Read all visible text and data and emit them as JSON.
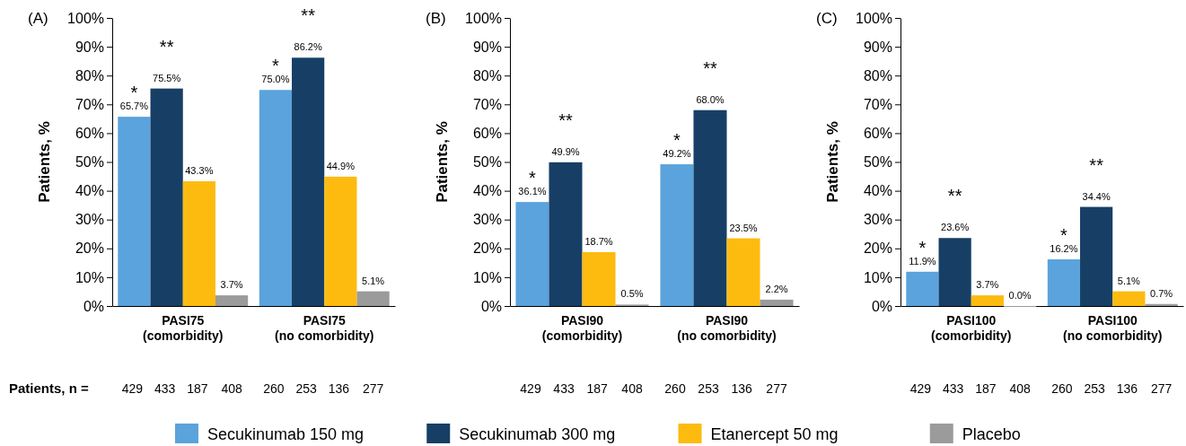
{
  "chart_data": [
    {
      "type": "bar",
      "title": "(A)",
      "ylabel": "Patients, %",
      "categories": [
        "PASI75 (comorbidity)",
        "PASI75 (no comorbidity)"
      ],
      "ylim": [
        0,
        100
      ],
      "yticks": [
        {
          "value": 0,
          "label": "0%"
        },
        {
          "value": 10,
          "label": "10%"
        },
        {
          "value": 20,
          "label": "20%"
        },
        {
          "value": 30,
          "label": "30%"
        },
        {
          "value": 40,
          "label": "40%"
        },
        {
          "value": 50,
          "label": "50%"
        },
        {
          "value": 60,
          "label": "60%"
        },
        {
          "value": 70,
          "label": "70%"
        },
        {
          "value": 80,
          "label": "80%"
        },
        {
          "value": 90,
          "label": "90%"
        },
        {
          "value": 100,
          "label": "100%"
        }
      ],
      "legend": "bottom",
      "series": [
        {
          "name": "Secukinumab 150 mg",
          "color": "#5ba3dc",
          "values": [
            65.7,
            75.0
          ],
          "value_labels": [
            "65.7%",
            "75.0%"
          ]
        },
        {
          "name": "Secukinumab 300 mg",
          "color": "#173f66",
          "values": [
            75.5,
            86.2
          ],
          "value_labels": [
            "75.5%",
            "86.2%"
          ]
        },
        {
          "name": "Etanercept 50 mg",
          "color": "#fdbb10",
          "values": [
            43.3,
            44.9
          ],
          "value_labels": [
            "43.3%",
            "44.9%"
          ]
        },
        {
          "name": "Placebo",
          "color": "#9b9b9b",
          "values": [
            3.7,
            5.1
          ],
          "value_labels": [
            "3.7%",
            "5.1%"
          ]
        }
      ],
      "annotations": [
        {
          "text": "*",
          "x": "PASI75 (comorbidity)",
          "y": 65.7
        },
        {
          "text": "**",
          "x": "PASI75 (comorbidity)",
          "y": 75.5
        },
        {
          "text": "*",
          "x": "PASI75 (no comorbidity)",
          "y": 75.0
        },
        {
          "text": "**",
          "x": "PASI75 (no comorbidity)",
          "y": 86.2
        },
        "Patients, n =",
        "429 433 187 408",
        "260 253 136 277"
      ]
    },
    {
      "type": "bar",
      "title": "(B)",
      "ylabel": "Patients, %",
      "categories": [
        "PASI90 (comorbidity)",
        "PASI90 (no comorbidity)"
      ],
      "ylim": [
        0,
        100
      ],
      "yticks": [
        {
          "value": 0,
          "label": "0%"
        },
        {
          "value": 10,
          "label": "10%"
        },
        {
          "value": 20,
          "label": "20%"
        },
        {
          "value": 30,
          "label": "30%"
        },
        {
          "value": 40,
          "label": "40%"
        },
        {
          "value": 50,
          "label": "50%"
        },
        {
          "value": 60,
          "label": "60%"
        },
        {
          "value": 70,
          "label": "70%"
        },
        {
          "value": 80,
          "label": "80%"
        },
        {
          "value": 90,
          "label": "90%"
        },
        {
          "value": 100,
          "label": "100%"
        }
      ],
      "series": [
        {
          "color": "#5ba3dc",
          "values": [
            36.1,
            49.2
          ],
          "value_labels": [
            "36.1%",
            "49.2%"
          ]
        },
        {
          "color": "#173f66",
          "values": [
            49.9,
            68.0
          ],
          "value_labels": [
            "49.9%",
            "68.0%"
          ]
        },
        {
          "color": "#fdbb10",
          "values": [
            18.7,
            23.5
          ],
          "value_labels": [
            "18.7%",
            "23.5%"
          ]
        },
        {
          "color": "#9b9b9b",
          "values": [
            0.5,
            2.2
          ],
          "value_labels": [
            "0.5%",
            "2.2%"
          ]
        }
      ],
      "annotations": [
        {
          "text": "*",
          "x": "PASI90 (comorbidity)",
          "y": 36.1
        },
        {
          "text": "**",
          "x": "PASI90 (comorbidity)",
          "y": 49.9
        },
        {
          "text": "*",
          "x": "PASI90 (no comorbidity)",
          "y": 49.2
        },
        {
          "text": "**",
          "x": "PASI90 (no comorbidity)",
          "y": 68.0
        },
        "429 433 187 408",
        "260 253 136 277"
      ]
    },
    {
      "type": "bar",
      "title": "(C)",
      "ylabel": "Patients, %",
      "categories": [
        "PASI100 (comorbidity)",
        "PASI100 (no comorbidity)"
      ],
      "ylim": [
        0,
        100
      ],
      "yticks": [
        {
          "value": 0,
          "label": "0%"
        },
        {
          "value": 10,
          "label": "10%"
        },
        {
          "value": 20,
          "label": "20%"
        },
        {
          "value": 30,
          "label": "30%"
        },
        {
          "value": 40,
          "label": "40%"
        },
        {
          "value": 50,
          "label": "50%"
        },
        {
          "value": 60,
          "label": "60%"
        },
        {
          "value": 70,
          "label": "70%"
        },
        {
          "value": 80,
          "label": "80%"
        },
        {
          "value": 90,
          "label": "90%"
        },
        {
          "value": 100,
          "label": "100%"
        }
      ],
      "series": [
        {
          "color": "#5ba3dc",
          "values": [
            11.9,
            16.2
          ],
          "value_labels": [
            "11.9%",
            "16.2%"
          ]
        },
        {
          "color": "#173f66",
          "values": [
            23.6,
            34.4
          ],
          "value_labels": [
            "23.6%",
            "34.4%"
          ]
        },
        {
          "color": "#fdbb10",
          "values": [
            3.7,
            5.1
          ],
          "value_labels": [
            "3.7%",
            "5.1%"
          ]
        },
        {
          "color": "#9b9b9b",
          "values": [
            0.0,
            0.7
          ],
          "value_labels": [
            "0.0%",
            "0.7%"
          ]
        }
      ],
      "annotations": [
        {
          "text": "*",
          "x": "PASI100 (comorbidity)",
          "y": 11.9
        },
        {
          "text": "**",
          "x": "PASI100 (comorbidity)",
          "y": 23.6
        },
        {
          "text": "*",
          "x": "PASI100 (no comorbidity)",
          "y": 16.2
        },
        {
          "text": "**",
          "x": "PASI100 (no comorbidity)",
          "y": 34.4
        },
        "429 433 187 408",
        "260 253 136 277"
      ]
    }
  ]
}
